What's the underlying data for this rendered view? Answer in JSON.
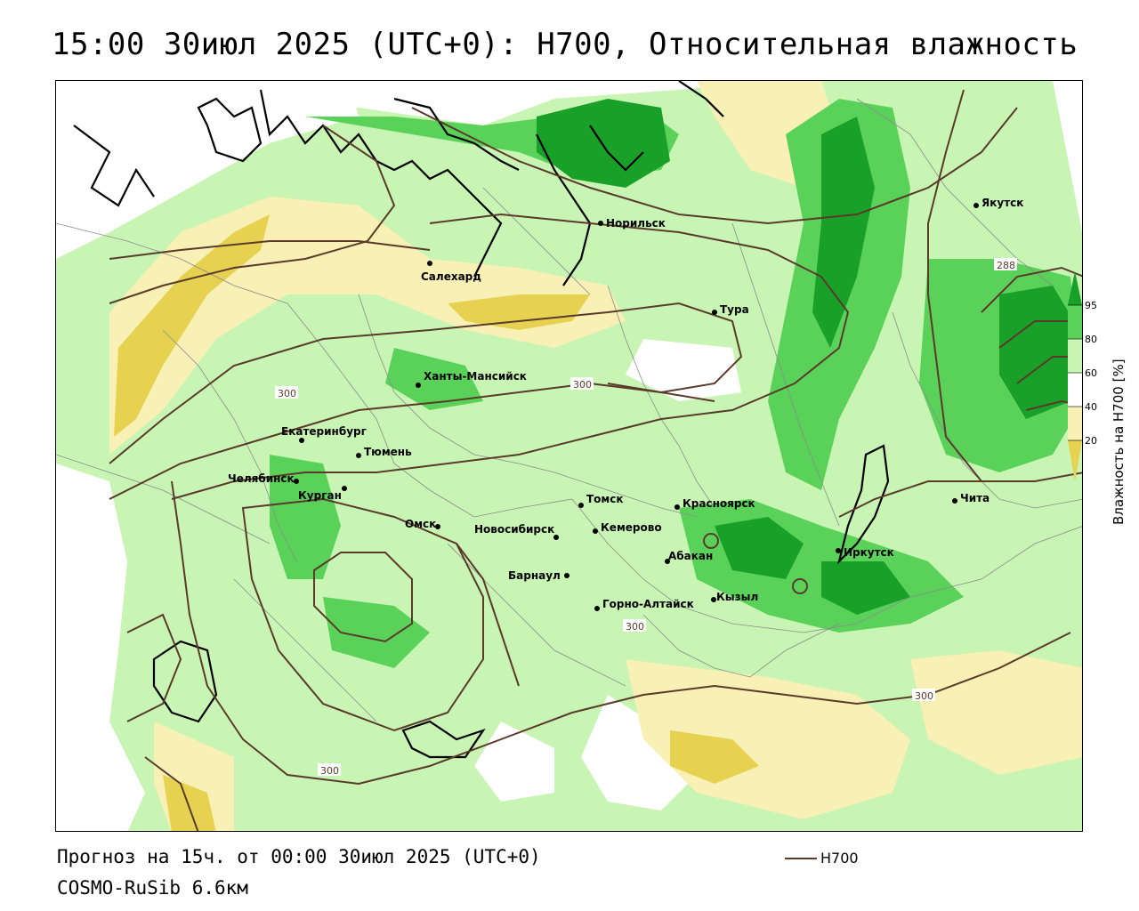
{
  "title": "15:00 30июл 2025 (UTC+0): H700, Относительная влажность",
  "footer": {
    "forecast": "Прогноз на 15ч. от 00:00 30июл 2025 (UTC+0)",
    "model": "COSMO-RuSib 6.6км"
  },
  "legend": {
    "line_label": "H700",
    "colorbar_title": "Влажность на H700 [%]",
    "ticks": [
      "95",
      "80",
      "60",
      "40",
      "20"
    ]
  },
  "colors": {
    "background": "#ffffff",
    "light_green": "#c8f5b4",
    "medium_green": "#5ad25a",
    "dark_green": "#18a028",
    "light_yellow": "#f8f0b4",
    "dark_yellow": "#e6d250",
    "contour": "#5a3a2a"
  },
  "contour_labels": [
    "300",
    "300",
    "300",
    "300",
    "300",
    "288"
  ],
  "cities": [
    {
      "name": "Норильск"
    },
    {
      "name": "Салехард"
    },
    {
      "name": "Якутск"
    },
    {
      "name": "Тура"
    },
    {
      "name": "Ханты-Мансийск"
    },
    {
      "name": "Екатеринбург"
    },
    {
      "name": "Тюмень"
    },
    {
      "name": "Челябинск"
    },
    {
      "name": "Курган"
    },
    {
      "name": "Омск"
    },
    {
      "name": "Новосибирск"
    },
    {
      "name": "Томск"
    },
    {
      "name": "Кемерово"
    },
    {
      "name": "Красноярск"
    },
    {
      "name": "Абакан"
    },
    {
      "name": "Барнаул"
    },
    {
      "name": "Горно-Алтайск"
    },
    {
      "name": "Кызыл"
    },
    {
      "name": "Иркутск"
    },
    {
      "name": "Чита"
    }
  ]
}
